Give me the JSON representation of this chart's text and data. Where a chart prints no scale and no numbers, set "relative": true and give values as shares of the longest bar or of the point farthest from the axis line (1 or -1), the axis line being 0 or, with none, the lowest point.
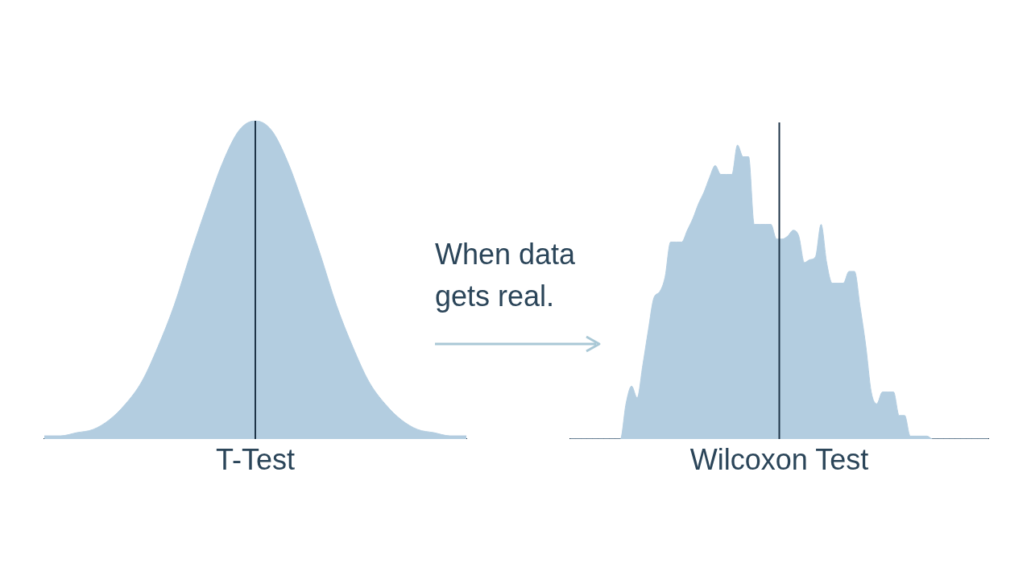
{
  "chart_data": [
    {
      "type": "area",
      "relative": true,
      "xlabel": "T-Test",
      "color": "#b3cde0",
      "tick_labels": false,
      "grid": false,
      "categories": [
        null,
        null,
        null,
        null,
        null,
        null,
        null,
        null,
        null,
        null,
        null,
        null,
        null,
        null,
        null,
        null,
        null,
        null,
        null,
        null,
        null,
        null,
        null,
        null,
        null,
        null,
        null
      ],
      "values": [
        0.01,
        0.01,
        0.02,
        0.03,
        0.06,
        0.11,
        0.18,
        0.29,
        0.42,
        0.58,
        0.73,
        0.87,
        0.97,
        1,
        0.97,
        0.87,
        0.73,
        0.58,
        0.42,
        0.29,
        0.18,
        0.11,
        0.06,
        0.03,
        0.02,
        0.01,
        0.01
      ],
      "annotations": [
        "When data gets real."
      ]
    },
    {
      "type": "area",
      "relative": true,
      "xlabel": "Wilcoxon Test",
      "color": "#b3cde0",
      "tick_labels": false,
      "grid": false,
      "categories": [
        null,
        null,
        null,
        null,
        null,
        null,
        null,
        null,
        null,
        null,
        null,
        null,
        null,
        null,
        null,
        null,
        null,
        null,
        null,
        null,
        null,
        null,
        null,
        null,
        null,
        null,
        null,
        null,
        null,
        null,
        null,
        null,
        null,
        null,
        null,
        null,
        null,
        null,
        null,
        null,
        null,
        null,
        null,
        null,
        null,
        null,
        null,
        null,
        null,
        null,
        null,
        null,
        null,
        null,
        null,
        null,
        null,
        null,
        null,
        null,
        null,
        null,
        null,
        null,
        null,
        null,
        null,
        null,
        null,
        null,
        null,
        null,
        null,
        null,
        null,
        null
      ],
      "values": [
        0,
        0,
        0,
        0,
        0,
        0,
        0,
        0,
        0,
        0,
        0.12,
        0.18,
        0.14,
        0.25,
        0.37,
        0.48,
        0.5,
        0.55,
        0.67,
        0.67,
        0.67,
        0.71,
        0.75,
        0.8,
        0.84,
        0.89,
        0.93,
        0.9,
        0.9,
        0.9,
        1,
        0.96,
        0.96,
        0.73,
        0.73,
        0.73,
        0.73,
        0.68,
        0.68,
        0.69,
        0.71,
        0.69,
        0.6,
        0.61,
        0.62,
        0.73,
        0.6,
        0.53,
        0.53,
        0.53,
        0.57,
        0.57,
        0.45,
        0.32,
        0.16,
        0.12,
        0.16,
        0.16,
        0.16,
        0.08,
        0.08,
        0.01,
        0.01,
        0.01,
        0.01,
        0,
        0,
        0,
        0,
        0,
        0,
        0,
        0,
        0,
        0,
        0
      ]
    }
  ]
}
